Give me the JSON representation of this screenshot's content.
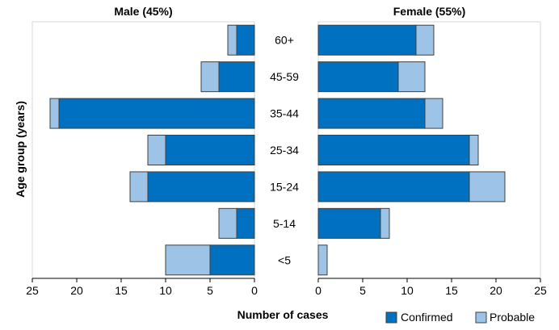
{
  "chart_data": {
    "type": "bar",
    "orientation": "horizontal",
    "layout": "population pyramid (two mirrored panels)",
    "categories": [
      "60+",
      "45-59",
      "35-44",
      "25-34",
      "15-24",
      "5-14",
      "<5"
    ],
    "ylabel": "Age group (years)",
    "xlabel": "Number of cases",
    "xlim": [
      0,
      25
    ],
    "x_ticks": [
      "0",
      "5",
      "10",
      "15",
      "20",
      "25"
    ],
    "stacked": true,
    "legend_position": "bottom-right",
    "panels": [
      {
        "title": "Male (45%)",
        "direction": "right-to-left",
        "series": [
          {
            "name": "Confirmed",
            "values": [
              2,
              4,
              22,
              10,
              12,
              2,
              5
            ]
          },
          {
            "name": "Probable",
            "values": [
              1,
              2,
              1,
              2,
              2,
              2,
              5
            ]
          }
        ]
      },
      {
        "title": "Female (55%)",
        "direction": "left-to-right",
        "series": [
          {
            "name": "Confirmed",
            "values": [
              11,
              9,
              12,
              17,
              17,
              7,
              0
            ]
          },
          {
            "name": "Probable",
            "values": [
              2,
              3,
              2,
              1,
              4,
              1,
              1
            ]
          }
        ]
      }
    ],
    "colors": {
      "Confirmed": "#0070c0",
      "Probable": "#9dc3e6"
    }
  }
}
